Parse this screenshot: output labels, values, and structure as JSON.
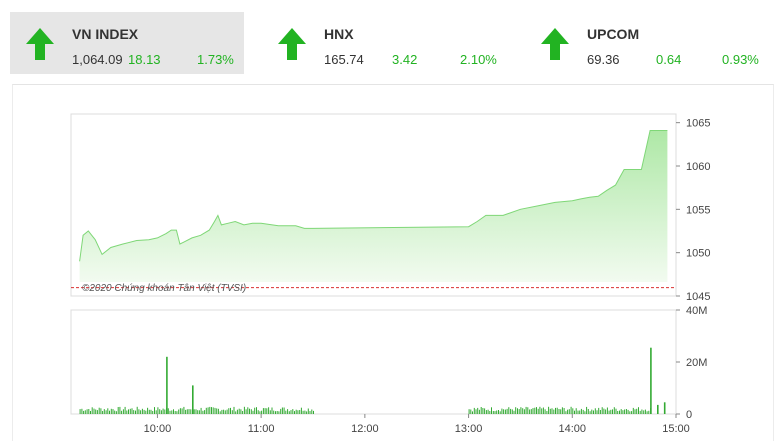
{
  "indices": [
    {
      "name": "VN INDEX",
      "value": "1,064.09",
      "change": "18.13",
      "percent": "1.73%",
      "direction": "up",
      "active": true
    },
    {
      "name": "HNX",
      "value": "165.74",
      "change": "3.42",
      "percent": "2.10%",
      "direction": "up",
      "active": false
    },
    {
      "name": "UPCOM",
      "value": "69.36",
      "change": "0.64",
      "percent": "0.93%",
      "direction": "up",
      "active": false
    }
  ],
  "colors": {
    "up": "#22b322",
    "area_top": "#aee8a6",
    "line": "#7fd777",
    "reference": "#d93030",
    "volume": "#33aa33"
  },
  "chart_data": {
    "type": "area",
    "watermark": "©2020 Chứng khoán Tân Việt (TVSI)",
    "price": {
      "y_ticks": [
        "1065",
        "1060",
        "1055",
        "1050",
        "1045"
      ],
      "ylim": [
        1045,
        1066
      ],
      "reference": 1045.96,
      "points": [
        [
          "09:15",
          1049.0
        ],
        [
          "09:17",
          1052.0
        ],
        [
          "09:20",
          1052.5
        ],
        [
          "09:24",
          1051.5
        ],
        [
          "09:28",
          1049.8
        ],
        [
          "09:33",
          1050.6
        ],
        [
          "09:40",
          1051.0
        ],
        [
          "09:48",
          1051.4
        ],
        [
          "09:55",
          1051.5
        ],
        [
          "10:00",
          1051.7
        ],
        [
          "10:05",
          1052.2
        ],
        [
          "10:08",
          1052.6
        ],
        [
          "10:11",
          1052.6
        ],
        [
          "10:13",
          1051.0
        ],
        [
          "10:15",
          1051.2
        ],
        [
          "10:20",
          1051.7
        ],
        [
          "10:25",
          1052.0
        ],
        [
          "10:30",
          1052.6
        ],
        [
          "10:33",
          1053.6
        ],
        [
          "10:35",
          1054.3
        ],
        [
          "10:37",
          1053.2
        ],
        [
          "10:41",
          1053.4
        ],
        [
          "10:45",
          1053.6
        ],
        [
          "10:50",
          1053.2
        ],
        [
          "10:55",
          1053.4
        ],
        [
          "11:00",
          1053.4
        ],
        [
          "11:10",
          1053.1
        ],
        [
          "11:20",
          1053.1
        ],
        [
          "11:25",
          1052.8
        ],
        [
          "11:30",
          1052.8
        ],
        [
          "13:00",
          1053.0
        ],
        [
          "13:05",
          1053.6
        ],
        [
          "13:10",
          1054.3
        ],
        [
          "13:20",
          1054.3
        ],
        [
          "13:30",
          1055.0
        ],
        [
          "13:40",
          1055.4
        ],
        [
          "13:50",
          1055.8
        ],
        [
          "14:00",
          1056.0
        ],
        [
          "14:05",
          1056.2
        ],
        [
          "14:10",
          1056.4
        ],
        [
          "14:15",
          1056.5
        ],
        [
          "14:20",
          1057.2
        ],
        [
          "14:25",
          1057.8
        ],
        [
          "14:30",
          1059.6
        ],
        [
          "14:35",
          1059.6
        ],
        [
          "14:40",
          1059.6
        ],
        [
          "14:45",
          1064.1
        ],
        [
          "14:55",
          1064.1
        ]
      ]
    },
    "volume": {
      "y_ticks": [
        "40M",
        "20M",
        "0"
      ],
      "ylim": [
        0,
        40
      ],
      "x_ticks": [
        "10:00",
        "11:00",
        "12:00",
        "13:00",
        "14:00",
        "15:00"
      ],
      "spikes": [
        [
          "10:05",
          22.0
        ],
        [
          "10:20",
          11.0
        ],
        [
          "14:45",
          25.5
        ],
        [
          "14:49",
          3.5
        ],
        [
          "14:53",
          4.5
        ]
      ],
      "sessions": [
        [
          "09:15",
          "11:30"
        ],
        [
          "13:00",
          "14:45"
        ]
      ],
      "base_level": 2.0
    }
  }
}
